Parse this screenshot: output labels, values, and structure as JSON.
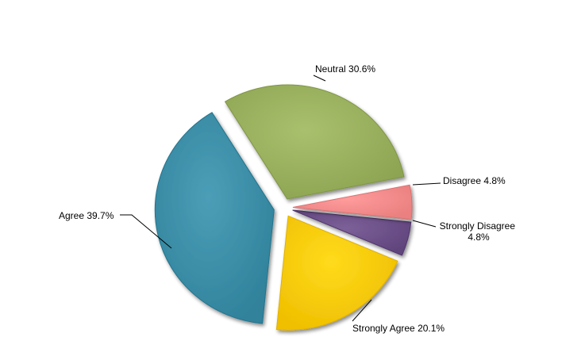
{
  "chart_data": {
    "type": "pie",
    "title": "",
    "legend": "none",
    "slices": [
      {
        "name": "Strongly Disagree",
        "label": "Strongly Disagree",
        "pct_text": "4.8%",
        "value": 4.8,
        "color": "#6a4e86"
      },
      {
        "name": "Strongly Agree",
        "label": "Strongly Agree",
        "pct_text": "20.1%",
        "value": 20.1,
        "color": "#f9c90a"
      },
      {
        "name": "Agree",
        "label": "Agree",
        "pct_text": "39.7%",
        "value": 39.7,
        "color": "#3a8ca5"
      },
      {
        "name": "Neutral",
        "label": "Neutral",
        "pct_text": "30.6%",
        "value": 30.6,
        "color": "#97ae5c"
      },
      {
        "name": "Disagree",
        "label": "Disagree",
        "pct_text": "4.8%",
        "value": 4.8,
        "color": "#f48a8a"
      }
    ]
  }
}
